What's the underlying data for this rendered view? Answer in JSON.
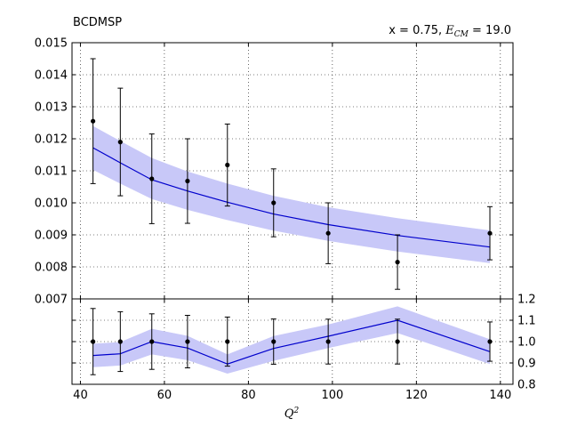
{
  "chart_data": [
    {
      "panel": "main",
      "type": "line",
      "title": "BCDMSP",
      "annotation": {
        "prefix": "x = 0.75, ",
        "math_symbol": "E",
        "math_subscript": "CM",
        "suffix": " = 19.0"
      },
      "xlabel": {
        "symbol": "Q",
        "superscript": "2"
      },
      "ylabel": "",
      "xlim": [
        38,
        143
      ],
      "ylim": [
        0.007,
        0.015
      ],
      "x_ticks": [
        40,
        60,
        80,
        100,
        120,
        140
      ],
      "y_ticks": [
        "0.007",
        "0.008",
        "0.009",
        "0.010",
        "0.011",
        "0.012",
        "0.013",
        "0.014",
        "0.015"
      ],
      "grid": true,
      "band_color": "#c8c8f8",
      "line_color": "#0000cc",
      "points_color": "#000000",
      "data_points": {
        "x": [
          43,
          49.5,
          57,
          65.5,
          75,
          86,
          99,
          115.5,
          137.5
        ],
        "y": [
          0.01255,
          0.0119,
          0.01075,
          0.01068,
          0.01118,
          0.01,
          0.00905,
          0.00815,
          0.00905
        ],
        "yerr": [
          0.00195,
          0.00168,
          0.0014,
          0.00132,
          0.00128,
          0.00106,
          0.00095,
          0.00085,
          0.00083
        ]
      },
      "theory": {
        "x": [
          43,
          49.5,
          57,
          65.5,
          75,
          86,
          99,
          115.5,
          137.5
        ],
        "y": [
          0.01172,
          0.01125,
          0.01072,
          0.01037,
          0.01002,
          0.00965,
          0.00932,
          0.00898,
          0.00862
        ],
        "band_lower": [
          0.01103,
          0.0106,
          0.01012,
          0.00978,
          0.00946,
          0.00913,
          0.00881,
          0.00848,
          0.00812
        ],
        "band_upper": [
          0.0124,
          0.01193,
          0.0114,
          0.01098,
          0.0106,
          0.01022,
          0.00986,
          0.00952,
          0.00914
        ]
      }
    },
    {
      "panel": "ratio",
      "type": "line",
      "xlim": [
        38,
        143
      ],
      "ylim": [
        0.8,
        1.2
      ],
      "y_ticks": [
        "0.8",
        "0.9",
        "1.0",
        "1.1",
        "1.2"
      ],
      "x_ticks": [
        "40",
        "60",
        "80",
        "100",
        "120",
        "140"
      ],
      "grid": true,
      "data_points": {
        "x": [
          43,
          49.5,
          57,
          65.5,
          75,
          86,
          99,
          115.5,
          137.5
        ],
        "y": [
          1.0,
          1.0,
          1.0,
          1.0,
          1.0,
          1.0,
          1.0,
          1.0,
          1.0
        ],
        "yerr": [
          0.155,
          0.14,
          0.13,
          0.123,
          0.115,
          0.106,
          0.105,
          0.105,
          0.092
        ]
      },
      "theory": {
        "x": [
          43,
          49.5,
          57,
          65.5,
          75,
          86,
          99,
          115.5,
          137.5
        ],
        "y": [
          0.935,
          0.943,
          1.0,
          0.97,
          0.895,
          0.968,
          1.025,
          1.1,
          0.953
        ],
        "band_lower": [
          0.88,
          0.888,
          0.94,
          0.913,
          0.85,
          0.91,
          0.97,
          1.04,
          0.895
        ],
        "band_upper": [
          0.99,
          0.998,
          1.06,
          1.027,
          0.94,
          1.026,
          1.08,
          1.165,
          1.011
        ]
      }
    }
  ]
}
